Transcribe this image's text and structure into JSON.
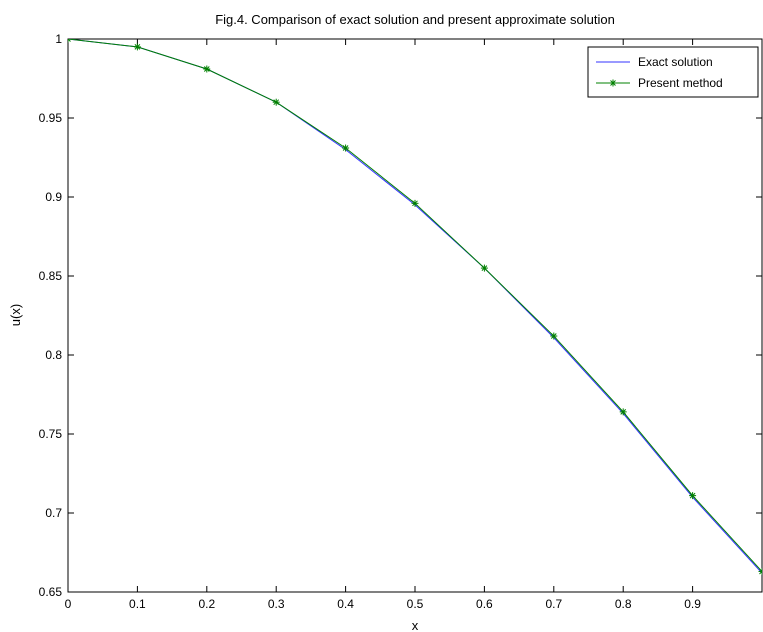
{
  "chart_data": {
    "type": "line",
    "title": "Fig.4. Comparison of exact solution and present approximate solution",
    "xlabel": "x",
    "ylabel": "u(x)",
    "xlim": [
      0,
      1
    ],
    "ylim": [
      0.65,
      1
    ],
    "xticks": [
      "0",
      "0.1",
      "0.2",
      "0.3",
      "0.4",
      "0.5",
      "0.6",
      "0.7",
      "0.8",
      "0.9"
    ],
    "yticks": [
      "0.65",
      "0.7",
      "0.75",
      "0.8",
      "0.85",
      "0.9",
      "0.95",
      "1"
    ],
    "grid": false,
    "legend_position": "top-right",
    "series": [
      {
        "name": "Exact solution",
        "color": "#3333ff",
        "marker": "none",
        "x": [
          0,
          0.1,
          0.2,
          0.3,
          0.4,
          0.5,
          0.6,
          0.7,
          0.8,
          0.9,
          1.0
        ],
        "y": [
          1.0,
          0.995,
          0.981,
          0.96,
          0.93,
          0.895,
          0.855,
          0.811,
          0.763,
          0.71,
          0.662
        ]
      },
      {
        "name": "Present method",
        "color": "#008000",
        "marker": "asterisk",
        "x": [
          0,
          0.1,
          0.2,
          0.3,
          0.4,
          0.5,
          0.6,
          0.7,
          0.8,
          0.9,
          1.0
        ],
        "y": [
          1.0,
          0.995,
          0.981,
          0.96,
          0.931,
          0.896,
          0.855,
          0.812,
          0.764,
          0.711,
          0.663
        ]
      }
    ]
  }
}
